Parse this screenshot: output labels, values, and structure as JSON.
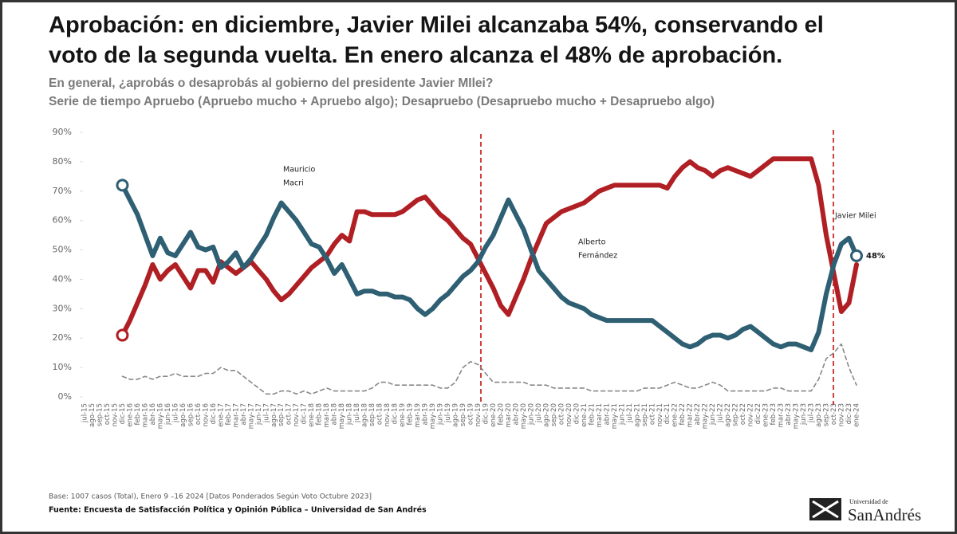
{
  "chart_data": {
    "type": "line",
    "title": [
      "Aprobación: en diciembre, Javier Milei alcanzaba 54%, conservando el",
      "voto de la segunda vuelta. En enero alcanza el 48% de aprobación."
    ],
    "subtitle": [
      "En general, ¿aprobás o desaprobás al gobierno del presidente Javier MIlei?",
      "Serie de tiempo Apruebo (Apruebo mucho + Apruebo algo); Desapruebo (Desapruebo mucho + Desapruebo algo)"
    ],
    "annotations": [
      [
        "Mauricio",
        "Macri"
      ],
      [
        "Alberto",
        "Fernández"
      ],
      [
        "Javier Milei"
      ]
    ],
    "footnote": "Base: 1007 casos (Total), Enero 9 –16 2024 [Datos Ponderados Según Voto Octubre 2023]",
    "source": "Fuente: Encuesta de Satisfacción Política y Opinión Pública – Universidad de San Andrés",
    "logo": [
      "Universidad de",
      "SanAndrés"
    ],
    "categories": [
      "jul-15",
      "ago-15",
      "sep-15",
      "oct-15",
      "nov-15",
      "dic-15",
      "ene-16",
      "feb-16",
      "mar-16",
      "abr-16",
      "may-16",
      "jun-16",
      "jul-16",
      "ago-16",
      "sep-16",
      "oct-16",
      "nov-16",
      "dic-16",
      "ene-17",
      "feb-17",
      "mar-17",
      "abr-17",
      "may-17",
      "jun-17",
      "jul-17",
      "ago-17",
      "sep-17",
      "oct-17",
      "nov-17",
      "dic-17",
      "ene-18",
      "feb-18",
      "mar-18",
      "abr-18",
      "may-18",
      "jun-18",
      "jul-18",
      "ago-18",
      "sep-18",
      "oct-18",
      "nov-18",
      "dic-18",
      "ene-19",
      "feb-19",
      "mar-19",
      "abr-19",
      "may-19",
      "jun-19",
      "jul-19",
      "ago-19",
      "sep-19",
      "oct-19",
      "nov-19",
      "dic-19",
      "ene-20",
      "feb-20",
      "mar-20",
      "abr-20",
      "may-20",
      "jun-20",
      "jul-20",
      "ago-20",
      "sep-20",
      "oct-20",
      "nov-20",
      "dic-20",
      "ene-21",
      "feb-21",
      "mar-21",
      "abr-21",
      "may-21",
      "jun-21",
      "jul-21",
      "ago-21",
      "sep-21",
      "oct-21",
      "nov-21",
      "dic-21",
      "ene-22",
      "feb-22",
      "mar-22",
      "abr-22",
      "may-22",
      "jun-22",
      "jul-22",
      "ago-22",
      "sep-22",
      "oct-22",
      "nov-22",
      "dic-22",
      "ene-23",
      "feb-23",
      "mar-23",
      "abr-23",
      "may-23",
      "jun-23",
      "jul-23",
      "ago-23",
      "sep-23",
      "oct-23",
      "nov-23",
      "dic-23",
      "ene-24"
    ],
    "series": [
      {
        "color": "#2e5f73",
        "marker": true,
        "values": [
          null,
          null,
          null,
          null,
          null,
          72,
          67,
          62,
          55,
          48,
          54,
          49,
          48,
          52,
          56,
          51,
          50,
          51,
          44,
          46,
          49,
          44,
          47,
          51,
          55,
          61,
          66,
          63,
          60,
          56,
          52,
          51,
          47,
          42,
          45,
          40,
          35,
          36,
          36,
          35,
          35,
          34,
          34,
          33,
          30,
          28,
          30,
          33,
          35,
          38,
          41,
          43,
          46,
          51,
          55,
          61,
          67,
          62,
          57,
          50,
          43,
          40,
          37,
          34,
          32,
          31,
          30,
          28,
          27,
          26,
          26,
          26,
          26,
          26,
          26,
          26,
          24,
          22,
          20,
          18,
          17,
          18,
          20,
          21,
          21,
          20,
          21,
          23,
          24,
          22,
          20,
          18,
          17,
          18,
          18,
          17,
          16,
          22,
          35,
          45,
          52,
          54,
          48
        ],
        "value_labels": [
          null,
          null,
          null,
          null,
          null,
          null,
          null,
          null,
          null,
          null,
          null,
          null,
          null,
          null,
          null,
          null,
          null,
          null,
          null,
          null,
          null,
          null,
          null,
          null,
          null,
          null,
          null,
          null,
          null,
          null,
          null,
          null,
          null,
          null,
          null,
          null,
          null,
          null,
          null,
          null,
          null,
          null,
          null,
          null,
          null,
          null,
          null,
          null,
          null,
          null,
          null,
          null,
          null,
          null,
          null,
          null,
          null,
          null,
          null,
          null,
          null,
          null,
          null,
          null,
          null,
          null,
          null,
          null,
          null,
          null,
          null,
          null,
          null,
          null,
          null,
          null,
          null,
          null,
          null,
          null,
          null,
          null,
          null,
          null,
          null,
          null,
          null,
          null,
          null,
          null,
          null,
          null,
          null,
          null,
          null,
          null,
          null,
          null,
          null,
          null,
          null,
          null,
          "48%"
        ]
      },
      {
        "color": "#b01f24",
        "marker": true,
        "values": [
          null,
          null,
          null,
          null,
          null,
          21,
          26,
          32,
          38,
          45,
          40,
          43,
          45,
          41,
          37,
          43,
          43,
          39,
          46,
          44,
          42,
          44,
          46,
          43,
          40,
          36,
          33,
          35,
          38,
          41,
          44,
          46,
          48,
          52,
          55,
          53,
          63,
          63,
          62,
          62,
          62,
          62,
          63,
          65,
          67,
          68,
          65,
          62,
          60,
          57,
          54,
          52,
          47,
          42,
          37,
          31,
          28,
          34,
          40,
          47,
          53,
          59,
          61,
          63,
          64,
          65,
          66,
          68,
          70,
          71,
          72,
          72,
          72,
          72,
          72,
          72,
          72,
          71,
          75,
          78,
          80,
          78,
          77,
          75,
          77,
          78,
          77,
          76,
          75,
          77,
          79,
          81,
          81,
          81,
          81,
          81,
          81,
          72,
          55,
          42,
          29,
          32,
          45
        ]
      },
      {
        "color": "#888888",
        "dash": true,
        "marker": false,
        "values": [
          null,
          null,
          null,
          null,
          null,
          7,
          6,
          6,
          7,
          6,
          7,
          7,
          8,
          7,
          7,
          7,
          8,
          8,
          10,
          9,
          9,
          7,
          5,
          3,
          1,
          1,
          2,
          2,
          1,
          2,
          1,
          2,
          3,
          2,
          2,
          2,
          2,
          2,
          3,
          5,
          5,
          4,
          4,
          4,
          4,
          4,
          4,
          3,
          3,
          5,
          10,
          12,
          11,
          8,
          5,
          5,
          5,
          5,
          5,
          4,
          4,
          4,
          3,
          3,
          3,
          3,
          3,
          2,
          2,
          2,
          2,
          2,
          2,
          2,
          3,
          3,
          3,
          4,
          5,
          4,
          3,
          3,
          4,
          5,
          4,
          2,
          2,
          2,
          2,
          2,
          2,
          3,
          3,
          2,
          2,
          2,
          2,
          6,
          13,
          15,
          18,
          10,
          4
        ]
      }
    ],
    "ylim": [
      0,
      90
    ],
    "yticks": [
      {
        "value": 0,
        "label": "0%"
      },
      {
        "value": 10,
        "label": "10%"
      },
      {
        "value": 20,
        "label": "20%"
      },
      {
        "value": 30,
        "label": "30%"
      },
      {
        "value": 40,
        "label": "40%"
      },
      {
        "value": 50,
        "label": "50%"
      },
      {
        "value": 60,
        "label": "60%"
      },
      {
        "value": 70,
        "label": "70%"
      },
      {
        "value": 80,
        "label": "80%"
      },
      {
        "value": 90,
        "label": "90%"
      }
    ],
    "grid": false
  }
}
